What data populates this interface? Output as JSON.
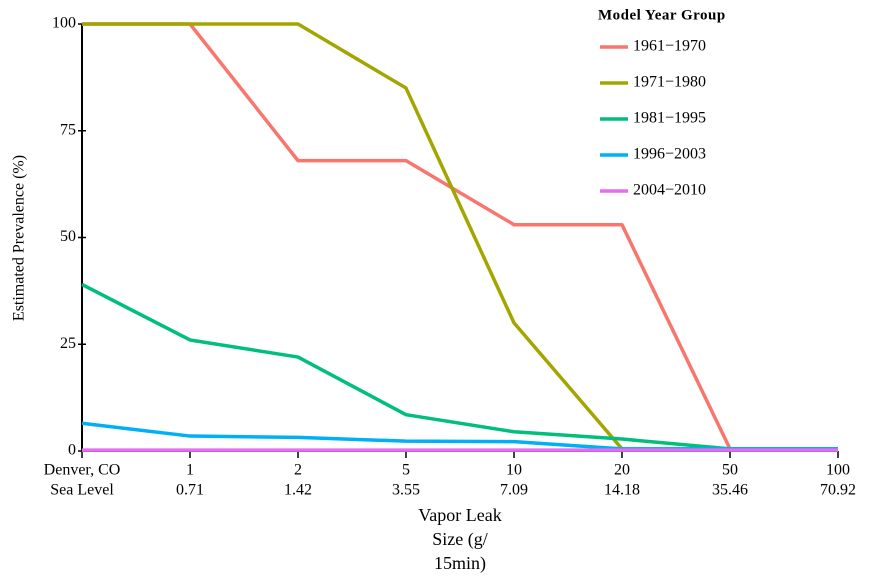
{
  "chart_data": {
    "type": "line",
    "ylabel": "Estimated Prevalence (%)",
    "xlabel": [
      "Vapor Leak",
      "Size (g/",
      "15min)"
    ],
    "categories": [
      "Denver, CO",
      "1",
      "2",
      "5",
      "10",
      "20",
      "50",
      "100"
    ],
    "categories_row2": [
      "Sea Level",
      "0.71",
      "1.42",
      "3.55",
      "7.09",
      "14.18",
      "35.46",
      "70.92"
    ],
    "ylim": [
      0,
      100
    ],
    "yticks": [
      0,
      25,
      50,
      75,
      100
    ],
    "legend_title": "Model Year Group",
    "legend": "top-right",
    "series": [
      {
        "name": "1961−1970",
        "color": "#F8766D",
        "values": [
          100,
          100,
          68,
          68,
          53,
          53,
          0.5,
          0.5
        ]
      },
      {
        "name": "1971−1980",
        "color": "#A3A500",
        "values": [
          100,
          100,
          100,
          85,
          30,
          0.5,
          0.5,
          0.5
        ]
      },
      {
        "name": "1981−1995",
        "color": "#00BF7D",
        "values": [
          39,
          26,
          22,
          8.5,
          4.5,
          2.8,
          0.5,
          0.5
        ]
      },
      {
        "name": "1996−2003",
        "color": "#00B0F6",
        "values": [
          6.5,
          3.5,
          3.2,
          2.3,
          2.2,
          0.5,
          0.5,
          0.5
        ]
      },
      {
        "name": "2004−2010",
        "color": "#E76BF3",
        "values": [
          0.2,
          0.2,
          0.2,
          0.2,
          0.2,
          0.2,
          0.2,
          0.2
        ]
      }
    ]
  }
}
